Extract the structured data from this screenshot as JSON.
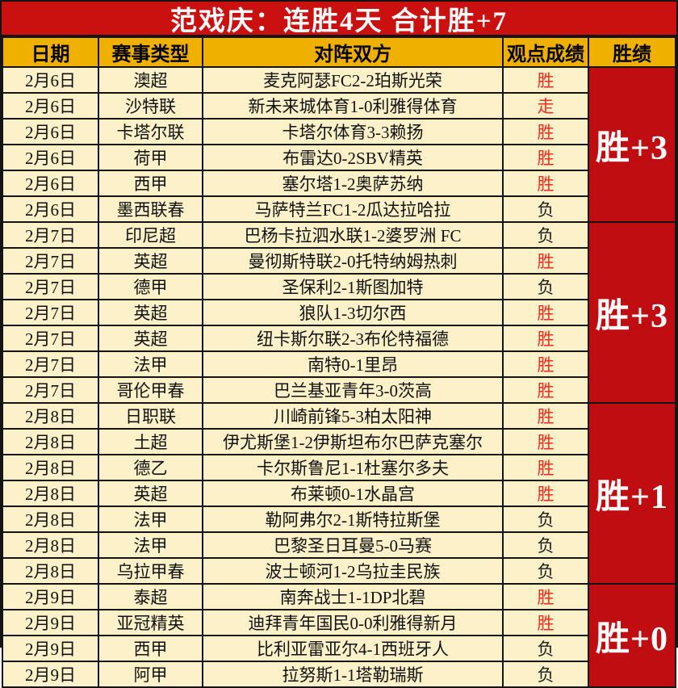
{
  "title": "范戏庆：连胜4天  合计胜+7",
  "columns": [
    "日期",
    "赛事类型",
    "对阵双方",
    "观点成绩",
    "胜绩"
  ],
  "colors": {
    "banner-bg": "#cb1010",
    "header-bg": "#f0b000",
    "row-bg": "#fcf1c9",
    "streak-bg": "#bf0d11",
    "result-win": "#f42a1a",
    "result-loss": "#1a1a1a",
    "border-color": "#141414",
    "title-text": "#ffffff",
    "row-text": "#111111"
  },
  "groups": [
    {
      "summary": "胜+3",
      "rows": [
        {
          "date": "2月6日",
          "league": "澳超",
          "match": "麦克阿瑟FC2-2珀斯光荣",
          "result": "胜",
          "result_style": "red"
        },
        {
          "date": "2月6日",
          "league": "沙特联",
          "match": "新未来城体育1-0利雅得体育",
          "result": "走",
          "result_style": "red"
        },
        {
          "date": "2月6日",
          "league": "卡塔尔联",
          "match": "卡塔尔体育3-3赖扬",
          "result": "胜",
          "result_style": "red"
        },
        {
          "date": "2月6日",
          "league": "荷甲",
          "match": "布雷达0-2SBV精英",
          "result": "胜",
          "result_style": "red"
        },
        {
          "date": "2月6日",
          "league": "西甲",
          "match": "塞尔塔1-2奥萨苏纳",
          "result": "胜",
          "result_style": "red"
        },
        {
          "date": "2月6日",
          "league": "墨西联春",
          "match": "马萨特兰FC1-2瓜达拉哈拉",
          "result": "负",
          "result_style": "dark"
        }
      ]
    },
    {
      "summary": "胜+3",
      "rows": [
        {
          "date": "2月7日",
          "league": "印尼超",
          "match": "巴杨卡拉泗水联1-2婆罗洲 FC",
          "result": "负",
          "result_style": "dark"
        },
        {
          "date": "2月7日",
          "league": "英超",
          "match": "曼彻斯特联2-0托特纳姆热刺",
          "result": "胜",
          "result_style": "red"
        },
        {
          "date": "2月7日",
          "league": "德甲",
          "match": "圣保利2-1斯图加特",
          "result": "负",
          "result_style": "dark"
        },
        {
          "date": "2月7日",
          "league": "英超",
          "match": "狼队1-3切尔西",
          "result": "胜",
          "result_style": "red"
        },
        {
          "date": "2月7日",
          "league": "英超",
          "match": "纽卡斯尔联2-3布伦特福德",
          "result": "胜",
          "result_style": "red"
        },
        {
          "date": "2月7日",
          "league": "法甲",
          "match": "南特0-1里昂",
          "result": "胜",
          "result_style": "red"
        },
        {
          "date": "2月7日",
          "league": "哥伦甲春",
          "match": "巴兰基亚青年3-0茨高",
          "result": "胜",
          "result_style": "red"
        }
      ]
    },
    {
      "summary": "胜+1",
      "rows": [
        {
          "date": "2月8日",
          "league": "日职联",
          "match": "川崎前锋5-3柏太阳神",
          "result": "胜",
          "result_style": "red"
        },
        {
          "date": "2月8日",
          "league": "土超",
          "match": "伊尤斯堡1-2伊斯坦布尔巴萨克塞尔",
          "result": "胜",
          "result_style": "red"
        },
        {
          "date": "2月8日",
          "league": "德乙",
          "match": "卡尔斯鲁尼1-1杜塞尔多夫",
          "result": "胜",
          "result_style": "red"
        },
        {
          "date": "2月8日",
          "league": "英超",
          "match": "布莱顿0-1水晶宫",
          "result": "胜",
          "result_style": "red"
        },
        {
          "date": "2月8日",
          "league": "法甲",
          "match": "勒阿弗尔2-1斯特拉斯堡",
          "result": "负",
          "result_style": "dark"
        },
        {
          "date": "2月8日",
          "league": "法甲",
          "match": "巴黎圣日耳曼5-0马赛",
          "result": "负",
          "result_style": "dark"
        },
        {
          "date": "2月8日",
          "league": "乌拉甲春",
          "match": "波士顿河1-2乌拉圭民族",
          "result": "负",
          "result_style": "dark"
        }
      ]
    },
    {
      "summary": "胜+0",
      "rows": [
        {
          "date": "2月9日",
          "league": "泰超",
          "match": "南奔战士1-1DP北碧",
          "result": "胜",
          "result_style": "red"
        },
        {
          "date": "2月9日",
          "league": "亚冠精英",
          "match": "迪拜青年国民0-0利雅得新月",
          "result": "胜",
          "result_style": "red"
        },
        {
          "date": "2月9日",
          "league": "西甲",
          "match": "比利亚雷亚尔4-1西班牙人",
          "result": "负",
          "result_style": "dark"
        },
        {
          "date": "2月9日",
          "league": "阿甲",
          "match": "拉努斯1-1塔勒瑞斯",
          "result": "负",
          "result_style": "dark"
        }
      ]
    }
  ]
}
